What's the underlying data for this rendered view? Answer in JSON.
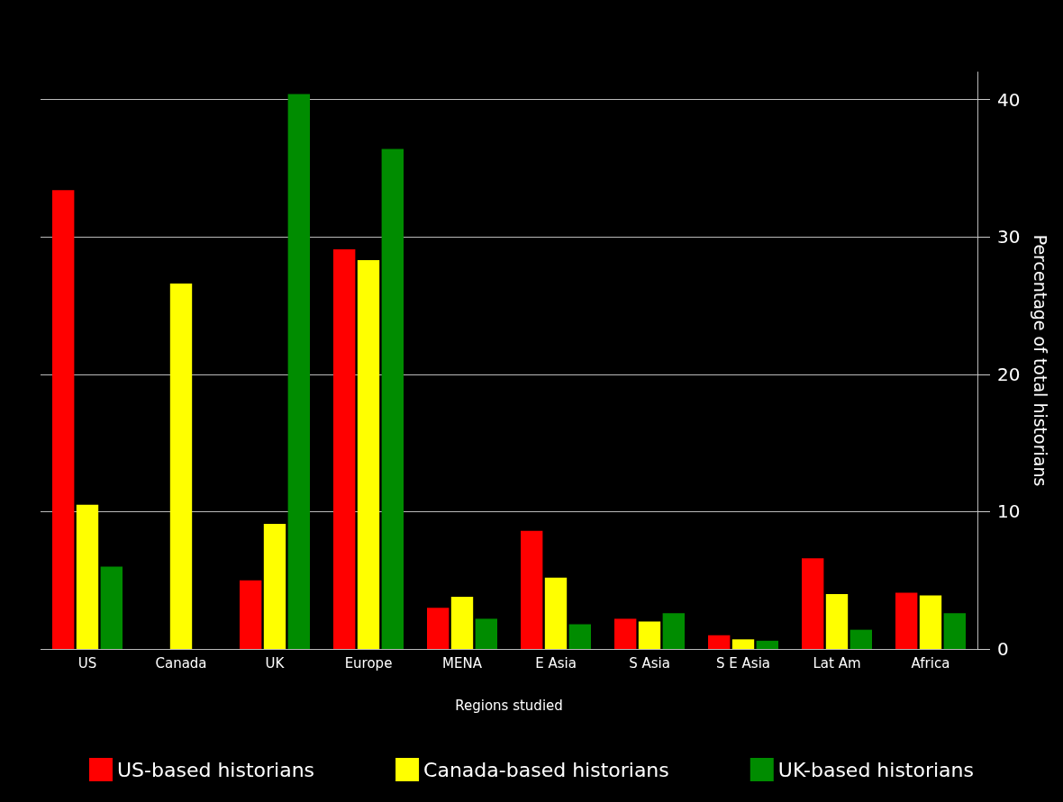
{
  "chart_data": {
    "type": "bar",
    "xlabel": "Regions studied",
    "ylabel": "Percentage of total historians",
    "categories": [
      "US",
      "Canada",
      "UK",
      "Europe",
      "MENA",
      "E Asia",
      "S Asia",
      "S E Asia",
      "Lat Am",
      "Africa"
    ],
    "series": [
      {
        "name": "US-based historians",
        "color": "#ff0000",
        "values": [
          33.4,
          0,
          5.0,
          29.1,
          3.0,
          8.6,
          2.2,
          1.0,
          6.6,
          4.1
        ]
      },
      {
        "name": "Canada-based historians",
        "color": "#ffff00",
        "values": [
          10.5,
          26.6,
          9.1,
          28.3,
          3.8,
          5.2,
          2.0,
          0.7,
          4.0,
          3.9
        ]
      },
      {
        "name": "UK-based historians",
        "color": "#008c00",
        "values": [
          6.0,
          0,
          40.4,
          36.4,
          2.2,
          1.8,
          2.6,
          0.6,
          1.4,
          2.6
        ]
      }
    ],
    "ylim": [
      0,
      42
    ],
    "yticks": [
      0,
      10,
      20,
      30,
      40
    ],
    "grid": "y",
    "legend": "bottom"
  }
}
